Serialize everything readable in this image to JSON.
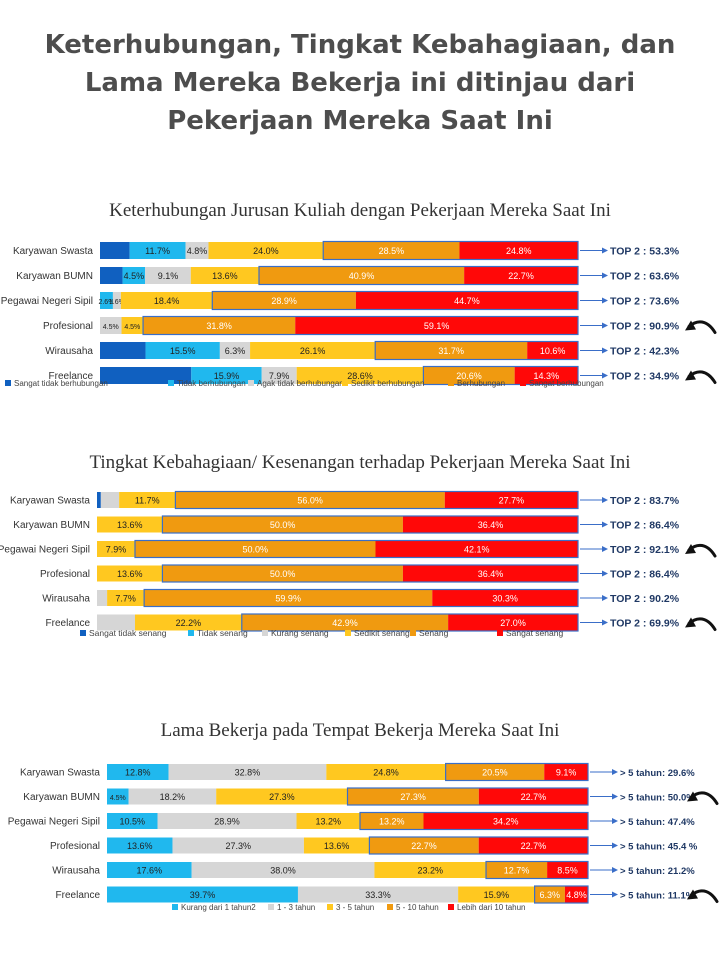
{
  "page": {
    "title_lines": [
      "Keterhubungan, Tingkat Kebahagiaan, dan",
      "Lama Mereka Bekerja ini ditinjau dari",
      "Pekerjaan Mereka Saat Ini"
    ]
  },
  "colors": {
    "dark_blue": "#1060c0",
    "light_blue": "#20b8ee",
    "gray": "#d6d6d6",
    "yellow": "#ffc820",
    "orange": "#f09a10",
    "red": "#ff0808",
    "annotation_text": "#1f3864",
    "box_stroke": "#3a6ec8"
  },
  "chart_data": [
    {
      "type": "bar",
      "stacked": "100%",
      "orientation": "horizontal",
      "title": "Keterhubungan Jurusan Kuliah dengan Pekerjaan Mereka Saat Ini",
      "categories": [
        "Karyawan Swasta",
        "Karyawan BUMN",
        "Pegawai Negeri Sipil",
        "Profesional",
        "Wirausaha",
        "Freelance"
      ],
      "series": [
        {
          "name": "Sangat tidak berhubungan",
          "color": "#1060c0",
          "values": [
            6.2,
            4.5,
            0.0,
            0.0,
            9.5,
            20.6
          ],
          "labels": [
            "",
            "",
            "",
            "",
            "",
            ""
          ]
        },
        {
          "name": "Tidak berhubungan",
          "color": "#20b8ee",
          "values": [
            11.7,
            4.5,
            2.6,
            0.0,
            15.5,
            15.9
          ],
          "labels": [
            "11.7%",
            "4.5%",
            "2.6%",
            "",
            "15.5%",
            "15.9%"
          ]
        },
        {
          "name": "Agak tidak berhubungan",
          "color": "#d6d6d6",
          "values": [
            4.8,
            9.1,
            1.6,
            4.5,
            6.3,
            7.9
          ],
          "labels": [
            "4.8%",
            "9.1%",
            "1.6%",
            "4.5%",
            "6.3%",
            "7.9%"
          ]
        },
        {
          "name": "Sedikit berhubungan",
          "color": "#ffc820",
          "values": [
            24.0,
            13.6,
            18.4,
            4.5,
            26.1,
            28.6
          ],
          "labels": [
            "24.0%",
            "13.6%",
            "18.4%",
            "4.5%",
            "26.1%",
            "28.6%"
          ]
        },
        {
          "name": "Berhubungan",
          "color": "#f09a10",
          "values": [
            28.5,
            40.9,
            28.9,
            31.8,
            31.7,
            20.6
          ],
          "labels": [
            "28.5%",
            "40.9%",
            "28.9%",
            "31.8%",
            "31.7%",
            "20.6%"
          ]
        },
        {
          "name": "Sangat berhubungan",
          "color": "#ff0808",
          "values": [
            24.8,
            22.7,
            44.7,
            59.1,
            10.6,
            14.3
          ],
          "labels": [
            "24.8%",
            "22.7%",
            "44.7%",
            "59.1%",
            "10.6%",
            "14.3%"
          ]
        }
      ],
      "box_from_series": 4,
      "annotations": [
        "TOP 2 : 53.3%",
        "TOP 2 : 63.6%",
        "TOP 2 : 73.6%",
        "TOP 2 : 90.9%",
        "TOP 2 : 42.3%",
        "TOP 2 : 34.9%"
      ],
      "highlight_rows": [
        3,
        5
      ],
      "legend_position": "bottom"
    },
    {
      "type": "bar",
      "stacked": "100%",
      "orientation": "horizontal",
      "title": "Tingkat Kebahagiaan/ Kesenangan terhadap Pekerjaan Mereka Saat Ini",
      "categories": [
        "Karyawan Swasta",
        "Karyawan BUMN",
        "Pegawai Negeri Sipil",
        "Profesional",
        "Wirausaha",
        "Freelance"
      ],
      "series": [
        {
          "name": "Sangat tidak senang",
          "color": "#1060c0",
          "values": [
            0.8,
            0.0,
            0.0,
            0.0,
            0.0,
            0.0
          ],
          "labels": [
            "",
            "",
            "",
            "",
            "",
            ""
          ]
        },
        {
          "name": "Tidak senang",
          "color": "#20b8ee",
          "values": [
            0.0,
            0.0,
            0.0,
            0.0,
            0.0,
            0.0
          ],
          "labels": [
            "",
            "",
            "",
            "",
            "",
            ""
          ]
        },
        {
          "name": "Kurang senang",
          "color": "#d6d6d6",
          "values": [
            3.8,
            0.0,
            0.0,
            0.0,
            2.1,
            7.9
          ],
          "labels": [
            "",
            "",
            "",
            "",
            "",
            ""
          ]
        },
        {
          "name": "Sedikit senang",
          "color": "#ffc820",
          "values": [
            11.7,
            13.6,
            7.9,
            13.6,
            7.7,
            22.2
          ],
          "labels": [
            "11.7%",
            "13.6%",
            "7.9%",
            "13.6%",
            "7.7%",
            "22.2%"
          ]
        },
        {
          "name": "Senang",
          "color": "#f09a10",
          "values": [
            56.0,
            50.0,
            50.0,
            50.0,
            59.9,
            42.9
          ],
          "labels": [
            "56.0%",
            "50.0%",
            "50.0%",
            "50.0%",
            "59.9%",
            "42.9%"
          ]
        },
        {
          "name": "Sangat senang",
          "color": "#ff0808",
          "values": [
            27.7,
            36.4,
            42.1,
            36.4,
            30.3,
            27.0
          ],
          "labels": [
            "27.7%",
            "36.4%",
            "42.1%",
            "36.4%",
            "30.3%",
            "27.0%"
          ]
        }
      ],
      "box_from_series": 4,
      "annotations": [
        "TOP 2 : 83.7%",
        "TOP 2 : 86.4%",
        "TOP 2 : 92.1%",
        "TOP 2 : 86.4%",
        "TOP 2 : 90.2%",
        "TOP 2 : 69.9%"
      ],
      "highlight_rows": [
        2,
        5
      ],
      "legend_position": "bottom"
    },
    {
      "type": "bar",
      "stacked": "100%",
      "orientation": "horizontal",
      "title": "Lama Bekerja pada Tempat Bekerja Mereka Saat Ini",
      "categories": [
        "Karyawan Swasta",
        "Karyawan BUMN",
        "Pegawai Negeri Sipil",
        "Profesional",
        "Wirausaha",
        "Freelance"
      ],
      "series": [
        {
          "name": "Kurang dari 1 tahun2",
          "color": "#20b8ee",
          "values": [
            12.8,
            4.5,
            10.5,
            13.6,
            17.6,
            39.7
          ],
          "labels": [
            "12.8%",
            "4.5%",
            "10.5%",
            "13.6%",
            "17.6%",
            "39.7%"
          ]
        },
        {
          "name": "1 - 3 tahun",
          "color": "#d6d6d6",
          "values": [
            32.8,
            18.2,
            28.9,
            27.3,
            38.0,
            33.3
          ],
          "labels": [
            "32.8%",
            "18.2%",
            "28.9%",
            "27.3%",
            "38.0%",
            "33.3%"
          ]
        },
        {
          "name": "3 - 5 tahun",
          "color": "#ffc820",
          "values": [
            24.8,
            27.3,
            13.2,
            13.6,
            23.2,
            15.9
          ],
          "labels": [
            "24.8%",
            "27.3%",
            "13.2%",
            "13.6%",
            "23.2%",
            "15.9%"
          ]
        },
        {
          "name": "5 - 10 tahun",
          "color": "#f09a10",
          "values": [
            20.5,
            27.3,
            13.2,
            22.7,
            12.7,
            6.3
          ],
          "labels": [
            "20.5%",
            "27.3%",
            "13.2%",
            "22.7%",
            "12.7%",
            "6.3%"
          ]
        },
        {
          "name": "Lebih dari 10 tahun",
          "color": "#ff0808",
          "values": [
            9.1,
            22.7,
            34.2,
            22.7,
            8.5,
            4.8
          ],
          "labels": [
            "9.1%",
            "22.7%",
            "34.2%",
            "22.7%",
            "8.5%",
            "4.8%"
          ]
        }
      ],
      "box_from_series": 3,
      "annotations": [
        "> 5 tahun: 29.6%",
        "> 5 tahun: 50.0%",
        "> 5 tahun: 47.4%",
        "> 5 tahun: 45.4 %",
        "> 5 tahun: 21.2%",
        "> 5 tahun: 11.1%"
      ],
      "highlight_rows": [
        1,
        5
      ],
      "legend_position": "bottom"
    }
  ]
}
